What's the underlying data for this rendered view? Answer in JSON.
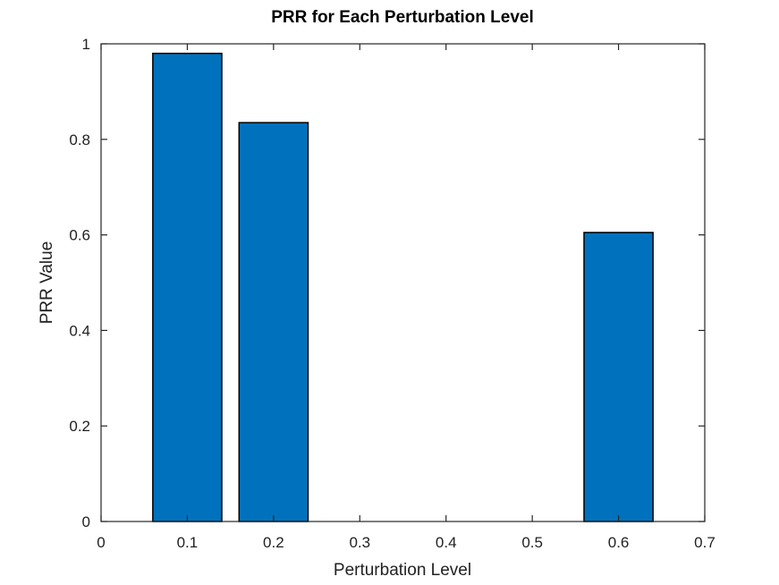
{
  "chart_data": {
    "type": "bar",
    "title": "PRR for Each Perturbation Level",
    "xlabel": "Perturbation Level",
    "ylabel": "PRR Value",
    "x": [
      0.1,
      0.2,
      0.6
    ],
    "values": [
      0.98,
      0.835,
      0.605
    ],
    "bar_width": 0.08,
    "xlim": [
      0,
      0.7
    ],
    "ylim": [
      0,
      1
    ],
    "xticks": [
      0,
      0.1,
      0.2,
      0.3,
      0.4,
      0.5,
      0.6,
      0.7
    ],
    "xtick_labels": [
      "0",
      "0.1",
      "0.2",
      "0.3",
      "0.4",
      "0.5",
      "0.6",
      "0.7"
    ],
    "yticks": [
      0,
      0.2,
      0.4,
      0.6,
      0.8,
      1
    ],
    "ytick_labels": [
      "0",
      "0.2",
      "0.4",
      "0.6",
      "0.8",
      "1"
    ],
    "bar_color": "#0072BD",
    "grid": false,
    "legend": "none"
  }
}
